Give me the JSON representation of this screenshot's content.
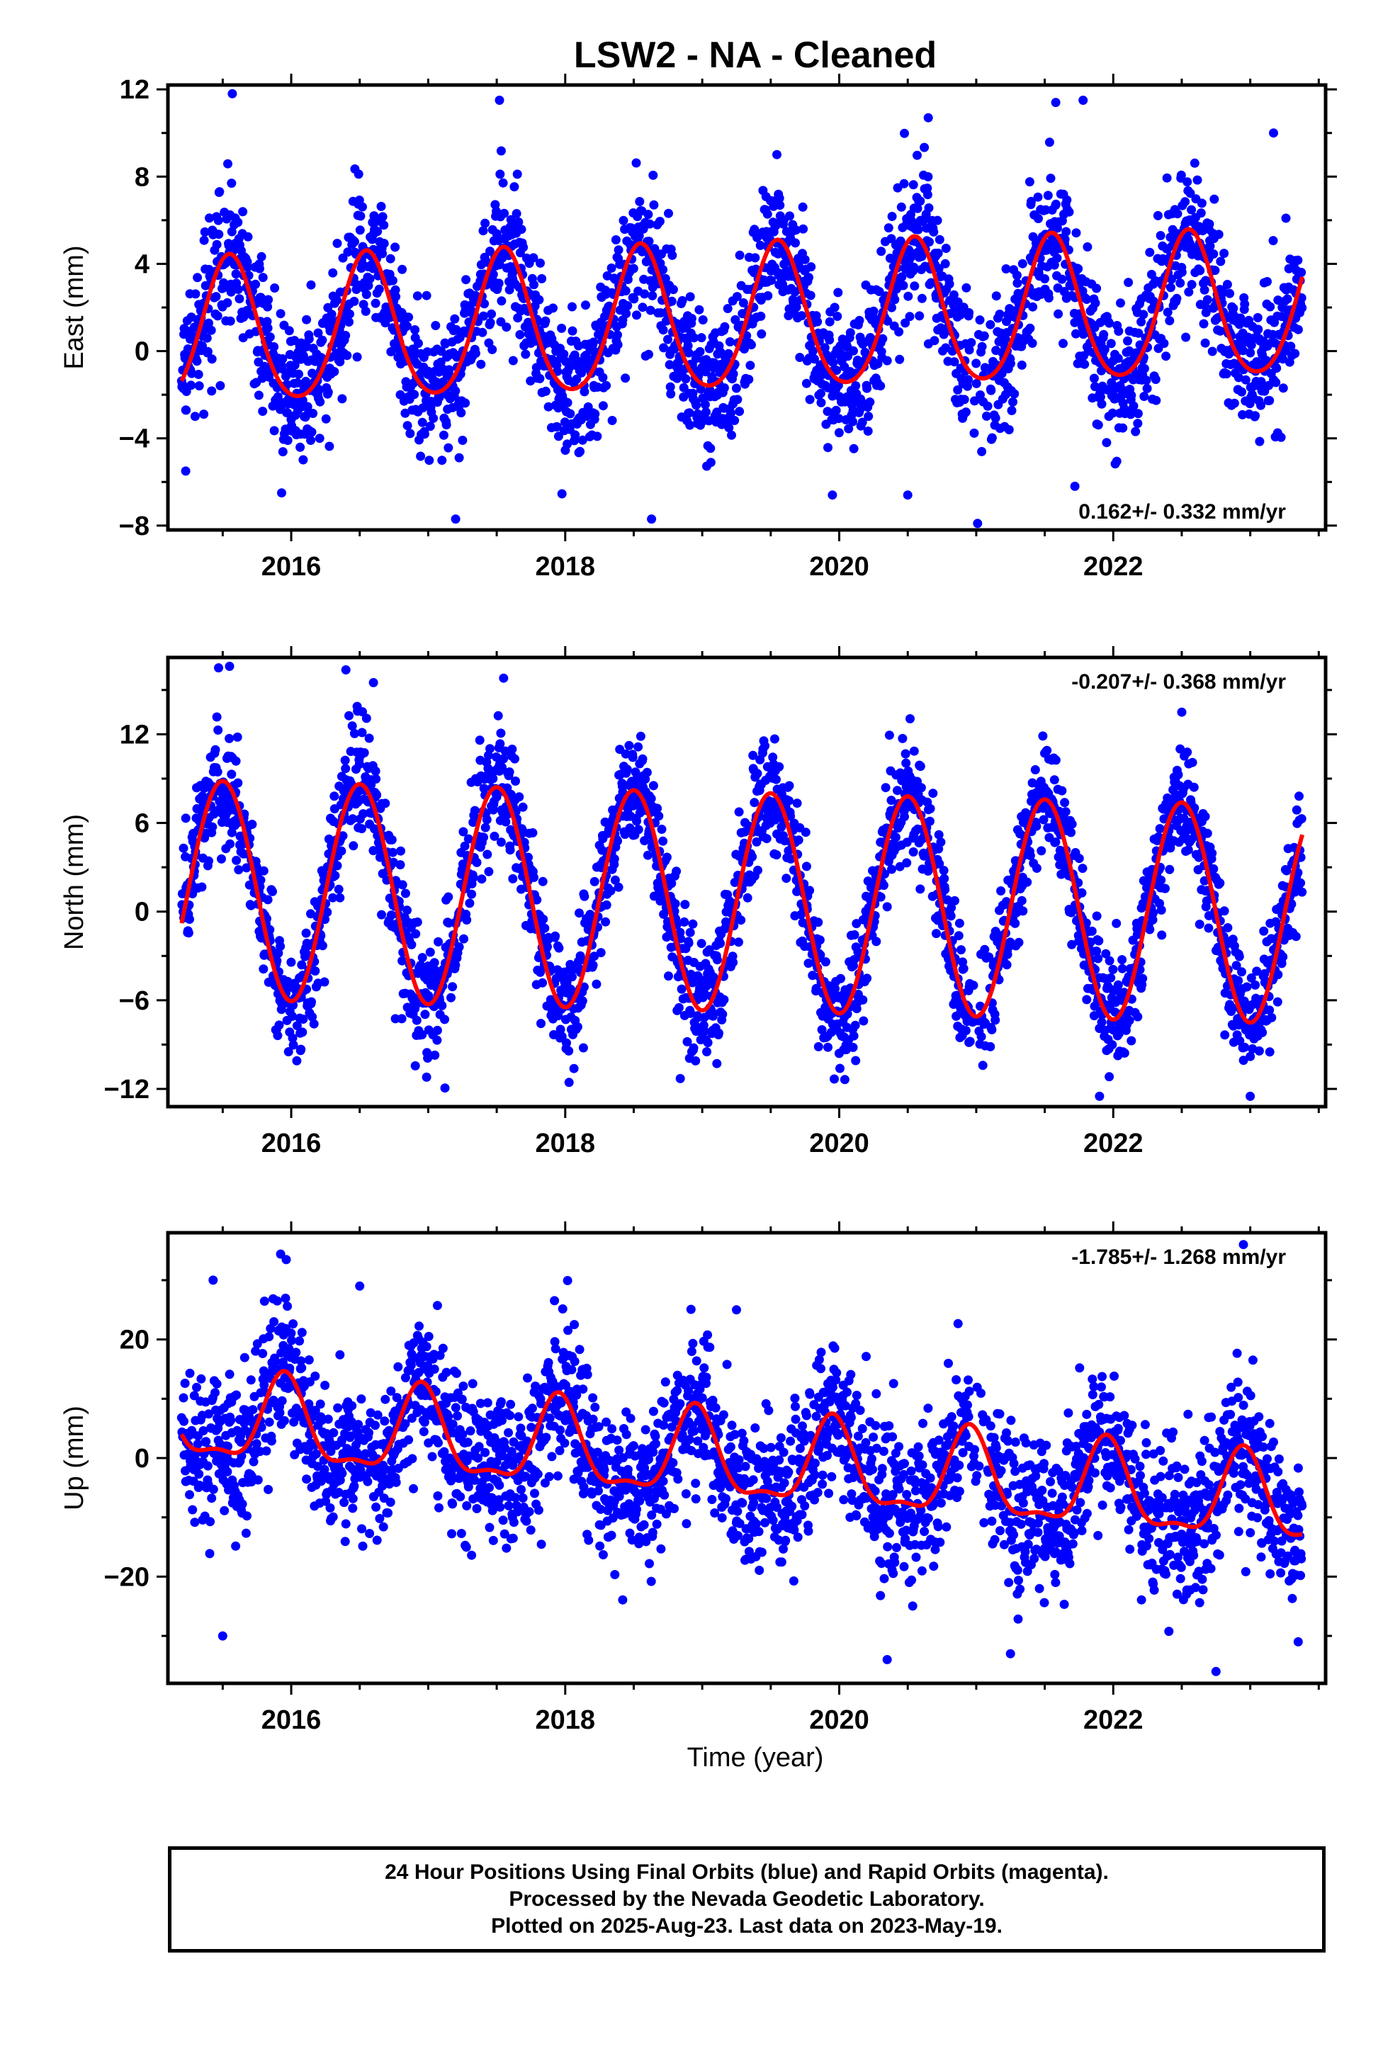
{
  "title": "LSW2  - NA - Cleaned",
  "xlabel": "Time (year)",
  "footer": {
    "line1": "24 Hour Positions Using Final Orbits (blue) and Rapid Orbits (magenta).",
    "line2": "Processed by the Nevada Geodetic Laboratory.",
    "line3": "Plotted on 2025-Aug-23. Last data on 2023-May-19."
  },
  "colors": {
    "points": "#0000ff",
    "fit": "#ff0000",
    "frame": "#000000"
  },
  "chart_data": [
    {
      "type": "scatter",
      "name": "east",
      "ylabel": "East (mm)",
      "rate": "0.162+/- 0.332 mm/yr",
      "rate_position": "bottom-right",
      "xlim": [
        2015.1,
        2023.55
      ],
      "ylim": [
        -8.2,
        12.2
      ],
      "yticks": [
        -8,
        -4,
        0,
        4,
        8,
        12
      ],
      "xticks": [
        2016,
        2018,
        2020,
        2022
      ],
      "data_start": 2015.2,
      "data_end": 2023.38,
      "fit_model": {
        "mean_at_start": 0.7,
        "trend_mm_per_yr": 0.162,
        "annual_amplitude": 3.3,
        "annual_peak_year": 2015.55,
        "semiannual_amplitude": 0.4,
        "semiannual_peak_year": 2015.55
      },
      "scatter_sd": 1.6,
      "outliers": [
        [
          2015.23,
          -5.5
        ],
        [
          2015.57,
          11.8
        ],
        [
          2015.93,
          -6.5
        ],
        [
          2017.2,
          -7.7
        ],
        [
          2018.63,
          -7.7
        ],
        [
          2019.95,
          -6.6
        ],
        [
          2020.5,
          -6.6
        ],
        [
          2021.01,
          -7.9
        ],
        [
          2021.72,
          -6.2
        ],
        [
          2021.78,
          11.5
        ],
        [
          2021.58,
          11.4
        ],
        [
          2017.52,
          11.5
        ],
        [
          2020.65,
          10.7
        ],
        [
          2023.17,
          10.0
        ]
      ],
      "fit": {
        "x": [
          2015.2,
          2015.55,
          2016.0,
          2016.55,
          2017.0,
          2017.55,
          2018.0,
          2018.55,
          2019.0,
          2019.55,
          2020.0,
          2020.55,
          2021.0,
          2021.55,
          2022.0,
          2022.55,
          2023.0,
          2023.38
        ],
        "y": [
          -1.0,
          4.2,
          -2.9,
          4.4,
          -2.7,
          4.5,
          -2.6,
          4.6,
          -2.4,
          4.8,
          -2.3,
          5.0,
          -2.2,
          5.1,
          -2.0,
          5.2,
          -1.8,
          2.8
        ]
      }
    },
    {
      "type": "scatter",
      "name": "north",
      "ylabel": "North (mm)",
      "rate": "-0.207+/- 0.368 mm/yr",
      "rate_position": "top-right",
      "xlim": [
        2015.1,
        2023.55
      ],
      "ylim": [
        -13.2,
        17.2
      ],
      "yticks": [
        -12,
        -6,
        0,
        6,
        12
      ],
      "xticks": [
        2016,
        2018,
        2020,
        2022
      ],
      "data_start": 2015.2,
      "data_end": 2023.38,
      "fit_model": {
        "mean_at_start": 1.5,
        "trend_mm_per_yr": -0.207,
        "annual_amplitude": 7.4,
        "annual_peak_year": 2015.5,
        "semiannual_amplitude": 0.0,
        "semiannual_peak_year": 2015.5
      },
      "scatter_sd": 2.0,
      "outliers": [
        [
          2015.55,
          16.6
        ],
        [
          2015.47,
          16.5
        ],
        [
          2016.6,
          15.5
        ],
        [
          2017.55,
          15.8
        ],
        [
          2018.84,
          -11.3
        ],
        [
          2021.9,
          -12.5
        ],
        [
          2023.0,
          -12.5
        ],
        [
          2022.5,
          13.5
        ]
      ],
      "fit": {
        "x": [
          2015.2,
          2015.5,
          2016.0,
          2016.5,
          2017.0,
          2017.5,
          2018.0,
          2018.5,
          2019.0,
          2019.5,
          2020.0,
          2020.5,
          2021.0,
          2021.5,
          2022.0,
          2022.5,
          2023.0,
          2023.38
        ],
        "y": [
          -0.8,
          8.9,
          -5.9,
          8.7,
          -6.0,
          8.5,
          -6.2,
          8.3,
          -6.4,
          8.1,
          -6.5,
          7.9,
          -6.7,
          7.7,
          -6.9,
          7.5,
          -7.1,
          3.3
        ]
      }
    },
    {
      "type": "scatter",
      "name": "up",
      "ylabel": "Up (mm)",
      "rate": "-1.785+/- 1.268 mm/yr",
      "rate_position": "top-right",
      "xlim": [
        2015.1,
        2023.55
      ],
      "ylim": [
        -38,
        38
      ],
      "yticks": [
        -20,
        0,
        20
      ],
      "xticks": [
        2016,
        2018,
        2020,
        2022
      ],
      "data_start": 2015.2,
      "data_end": 2023.38,
      "fit_model": {
        "mean_at_start": 6.5,
        "trend_mm_per_yr": -1.785,
        "annual_amplitude": 7.0,
        "annual_peak_year": 2015.95,
        "semiannual_amplitude": 2.5,
        "semiannual_peak_year": 2015.95
      },
      "scatter_sd": 6.5,
      "outliers": [
        [
          2015.5,
          -30
        ],
        [
          2015.43,
          30
        ],
        [
          2016.5,
          29
        ],
        [
          2019.25,
          25
        ],
        [
          2020.35,
          -34
        ],
        [
          2022.95,
          36
        ],
        [
          2022.75,
          -36
        ],
        [
          2023.35,
          -31
        ],
        [
          2021.25,
          -33
        ]
      ],
      "fit": {
        "x": [
          2015.2,
          2015.55,
          2015.95,
          2016.45,
          2016.95,
          2017.45,
          2017.95,
          2018.45,
          2018.95,
          2019.45,
          2019.95,
          2020.45,
          2020.95,
          2021.45,
          2021.95,
          2022.45,
          2022.95,
          2023.38
        ],
        "y": [
          4.5,
          1.0,
          14.5,
          -1.5,
          12.8,
          -3.2,
          11.0,
          -4.8,
          9.3,
          -6.6,
          7.5,
          -8.4,
          5.7,
          -10.2,
          3.9,
          -12.0,
          2.2,
          -14.5
        ]
      }
    }
  ]
}
